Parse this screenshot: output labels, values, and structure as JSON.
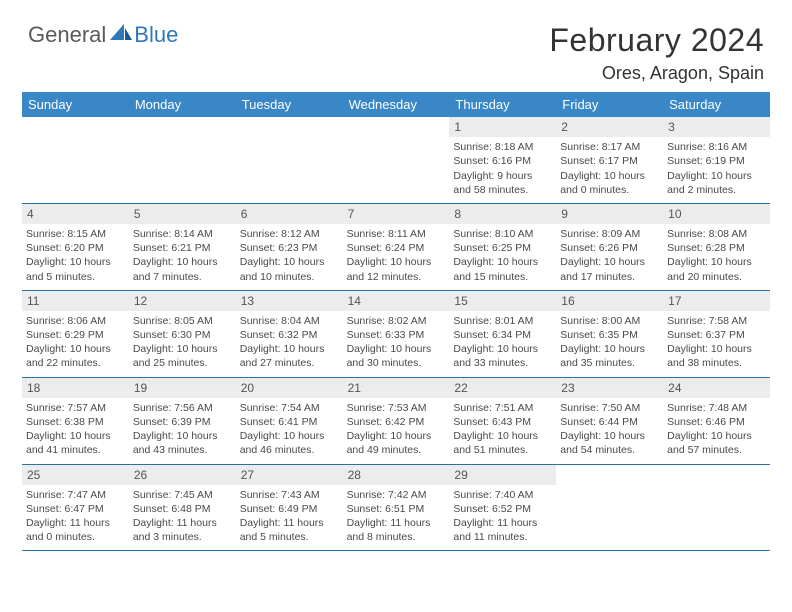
{
  "brand": {
    "part1": "General",
    "part2": "Blue"
  },
  "header": {
    "month_title": "February 2024",
    "location": "Ores, Aragon, Spain"
  },
  "colors": {
    "header_bg": "#3a87c8",
    "header_text": "#ffffff",
    "daynum_bg": "#ececec",
    "week_divider": "#2a6fa8",
    "brand_blue": "#2f78b8",
    "brand_gray": "#5a5a5a"
  },
  "weekdays": [
    "Sunday",
    "Monday",
    "Tuesday",
    "Wednesday",
    "Thursday",
    "Friday",
    "Saturday"
  ],
  "days": [
    {
      "n": "",
      "empty": true
    },
    {
      "n": "",
      "empty": true
    },
    {
      "n": "",
      "empty": true
    },
    {
      "n": "",
      "empty": true
    },
    {
      "n": "1",
      "sunrise": "8:18 AM",
      "sunset": "6:16 PM",
      "daylight": "9 hours and 58 minutes."
    },
    {
      "n": "2",
      "sunrise": "8:17 AM",
      "sunset": "6:17 PM",
      "daylight": "10 hours and 0 minutes."
    },
    {
      "n": "3",
      "sunrise": "8:16 AM",
      "sunset": "6:19 PM",
      "daylight": "10 hours and 2 minutes."
    },
    {
      "n": "4",
      "sunrise": "8:15 AM",
      "sunset": "6:20 PM",
      "daylight": "10 hours and 5 minutes."
    },
    {
      "n": "5",
      "sunrise": "8:14 AM",
      "sunset": "6:21 PM",
      "daylight": "10 hours and 7 minutes."
    },
    {
      "n": "6",
      "sunrise": "8:12 AM",
      "sunset": "6:23 PM",
      "daylight": "10 hours and 10 minutes."
    },
    {
      "n": "7",
      "sunrise": "8:11 AM",
      "sunset": "6:24 PM",
      "daylight": "10 hours and 12 minutes."
    },
    {
      "n": "8",
      "sunrise": "8:10 AM",
      "sunset": "6:25 PM",
      "daylight": "10 hours and 15 minutes."
    },
    {
      "n": "9",
      "sunrise": "8:09 AM",
      "sunset": "6:26 PM",
      "daylight": "10 hours and 17 minutes."
    },
    {
      "n": "10",
      "sunrise": "8:08 AM",
      "sunset": "6:28 PM",
      "daylight": "10 hours and 20 minutes."
    },
    {
      "n": "11",
      "sunrise": "8:06 AM",
      "sunset": "6:29 PM",
      "daylight": "10 hours and 22 minutes."
    },
    {
      "n": "12",
      "sunrise": "8:05 AM",
      "sunset": "6:30 PM",
      "daylight": "10 hours and 25 minutes."
    },
    {
      "n": "13",
      "sunrise": "8:04 AM",
      "sunset": "6:32 PM",
      "daylight": "10 hours and 27 minutes."
    },
    {
      "n": "14",
      "sunrise": "8:02 AM",
      "sunset": "6:33 PM",
      "daylight": "10 hours and 30 minutes."
    },
    {
      "n": "15",
      "sunrise": "8:01 AM",
      "sunset": "6:34 PM",
      "daylight": "10 hours and 33 minutes."
    },
    {
      "n": "16",
      "sunrise": "8:00 AM",
      "sunset": "6:35 PM",
      "daylight": "10 hours and 35 minutes."
    },
    {
      "n": "17",
      "sunrise": "7:58 AM",
      "sunset": "6:37 PM",
      "daylight": "10 hours and 38 minutes."
    },
    {
      "n": "18",
      "sunrise": "7:57 AM",
      "sunset": "6:38 PM",
      "daylight": "10 hours and 41 minutes."
    },
    {
      "n": "19",
      "sunrise": "7:56 AM",
      "sunset": "6:39 PM",
      "daylight": "10 hours and 43 minutes."
    },
    {
      "n": "20",
      "sunrise": "7:54 AM",
      "sunset": "6:41 PM",
      "daylight": "10 hours and 46 minutes."
    },
    {
      "n": "21",
      "sunrise": "7:53 AM",
      "sunset": "6:42 PM",
      "daylight": "10 hours and 49 minutes."
    },
    {
      "n": "22",
      "sunrise": "7:51 AM",
      "sunset": "6:43 PM",
      "daylight": "10 hours and 51 minutes."
    },
    {
      "n": "23",
      "sunrise": "7:50 AM",
      "sunset": "6:44 PM",
      "daylight": "10 hours and 54 minutes."
    },
    {
      "n": "24",
      "sunrise": "7:48 AM",
      "sunset": "6:46 PM",
      "daylight": "10 hours and 57 minutes."
    },
    {
      "n": "25",
      "sunrise": "7:47 AM",
      "sunset": "6:47 PM",
      "daylight": "11 hours and 0 minutes."
    },
    {
      "n": "26",
      "sunrise": "7:45 AM",
      "sunset": "6:48 PM",
      "daylight": "11 hours and 3 minutes."
    },
    {
      "n": "27",
      "sunrise": "7:43 AM",
      "sunset": "6:49 PM",
      "daylight": "11 hours and 5 minutes."
    },
    {
      "n": "28",
      "sunrise": "7:42 AM",
      "sunset": "6:51 PM",
      "daylight": "11 hours and 8 minutes."
    },
    {
      "n": "29",
      "sunrise": "7:40 AM",
      "sunset": "6:52 PM",
      "daylight": "11 hours and 11 minutes."
    },
    {
      "n": "",
      "empty": true
    },
    {
      "n": "",
      "empty": true
    }
  ],
  "labels": {
    "sunrise": "Sunrise: ",
    "sunset": "Sunset: ",
    "daylight": "Daylight: "
  }
}
